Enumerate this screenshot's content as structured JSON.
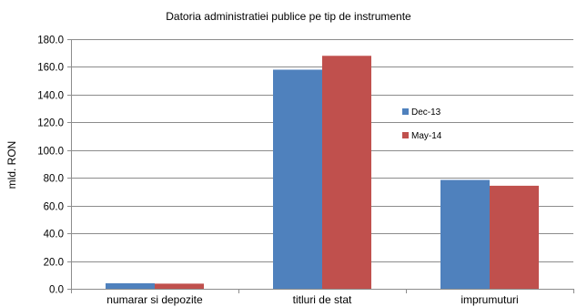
{
  "chart_data": {
    "type": "bar",
    "title": "Datoria administratiei publice  pe tip de instrumente",
    "xlabel": "",
    "ylabel": "mld. RON",
    "categories": [
      "numarar si depozite",
      "titluri de stat",
      "imprumuturi"
    ],
    "series": [
      {
        "name": "Dec-13",
        "values": [
          4.0,
          158.0,
          78.5
        ],
        "color": "#4F81BD"
      },
      {
        "name": "May-14",
        "values": [
          3.7,
          168.0,
          74.3
        ],
        "color": "#C0504D"
      }
    ],
    "ylim": [
      0,
      180
    ],
    "yticks": [
      "0.0",
      "20.0",
      "40.0",
      "60.0",
      "80.0",
      "100.0",
      "120.0",
      "140.0",
      "160.0",
      "180.0"
    ],
    "grid": true,
    "legend_position": "right"
  }
}
